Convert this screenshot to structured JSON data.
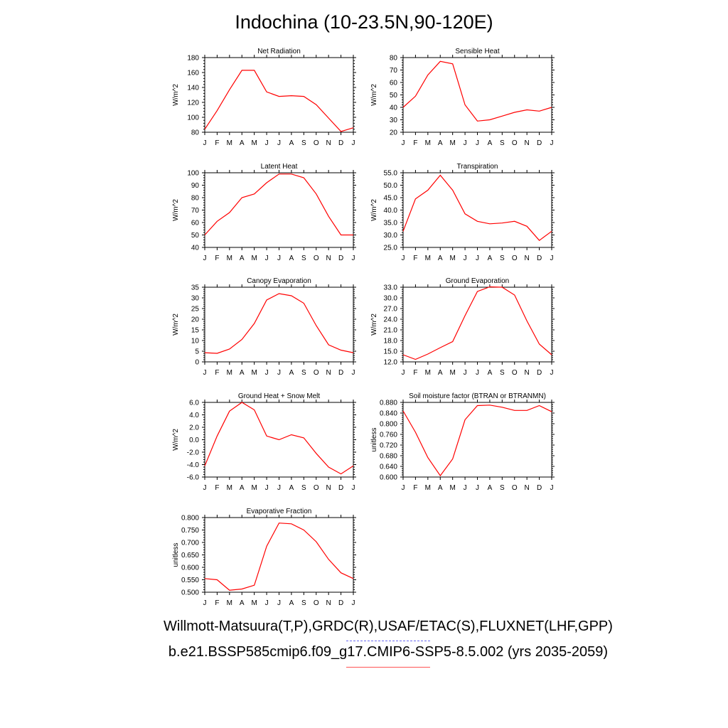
{
  "title": "Indochina (10-23.5N,90-120E)",
  "captions": {
    "obs": "Willmott-Matsuura(T,P),GRDC(R),USAF/ETAC(S),FLUXNET(LHF,GPP)",
    "model": "b.e21.BSSP585cmip6.f09_g17.CMIP6-SSP5-8.5.002 (yrs 2035-2059)"
  },
  "colors": {
    "model_line": "#ff0000",
    "obs_line": "#6a6af0",
    "axis": "#000000"
  },
  "months": [
    "J",
    "F",
    "M",
    "A",
    "M",
    "J",
    "J",
    "A",
    "S",
    "O",
    "N",
    "D",
    "J"
  ],
  "chart_data": [
    {
      "type": "line",
      "title": "Net Radiation",
      "ylabel": "W/m^2",
      "ylim": [
        80,
        180
      ],
      "yticks": [
        "80",
        "100",
        "120",
        "140",
        "160",
        "180"
      ],
      "series": [
        {
          "values": [
            84,
            109,
            137,
            163,
            163,
            134,
            128,
            129,
            128,
            117,
            99,
            81,
            86
          ]
        }
      ]
    },
    {
      "type": "line",
      "title": "Sensible Heat",
      "ylabel": "W/m^2",
      "ylim": [
        20,
        80
      ],
      "yticks": [
        "20",
        "30",
        "40",
        "50",
        "60",
        "70",
        "80"
      ],
      "series": [
        {
          "values": [
            40,
            49,
            66,
            77,
            75,
            42,
            29,
            30,
            33,
            36,
            38,
            37,
            40
          ]
        }
      ]
    },
    {
      "type": "line",
      "title": "Latent Heat",
      "ylabel": "W/m^2",
      "ylim": [
        40,
        100
      ],
      "yticks": [
        "40",
        "50",
        "60",
        "70",
        "80",
        "90",
        "100"
      ],
      "series": [
        {
          "values": [
            50,
            61,
            68,
            80,
            83,
            92,
            99,
            99,
            96,
            83,
            65,
            50,
            50
          ]
        }
      ]
    },
    {
      "type": "line",
      "title": "Transpiration",
      "ylabel": "W/m^2",
      "ylim": [
        25,
        55
      ],
      "yticks": [
        "25.0",
        "30.0",
        "35.0",
        "40.0",
        "45.0",
        "50.0",
        "55.0"
      ],
      "series": [
        {
          "values": [
            31.5,
            44.5,
            48,
            54,
            48,
            38.5,
            35.5,
            34.5,
            34.8,
            35.5,
            33.5,
            27.8,
            31.5
          ]
        }
      ]
    },
    {
      "type": "line",
      "title": "Canopy Evaporation",
      "ylabel": "W/m^2",
      "ylim": [
        0,
        35
      ],
      "yticks": [
        "0",
        "5",
        "10",
        "15",
        "20",
        "25",
        "30",
        "35"
      ],
      "series": [
        {
          "values": [
            4.3,
            4,
            6,
            10.5,
            18,
            29,
            32,
            31,
            27.5,
            17,
            8,
            5.5,
            4.3
          ]
        }
      ]
    },
    {
      "type": "line",
      "title": "Ground Evaporation",
      "ylabel": "W/m^2",
      "ylim": [
        12,
        33
      ],
      "yticks": [
        "12.0",
        "15.0",
        "18.0",
        "21.0",
        "24.0",
        "27.0",
        "30.0",
        "33.0"
      ],
      "series": [
        {
          "values": [
            14,
            12.7,
            14.2,
            16,
            17.7,
            25,
            31.8,
            33.1,
            33,
            30.8,
            23.5,
            17,
            14
          ]
        }
      ]
    },
    {
      "type": "line",
      "title": "Ground Heat + Snow Melt",
      "ylabel": "W/m^2",
      "ylim": [
        -6,
        6
      ],
      "yticks": [
        "-6.0",
        "-4.0",
        "-2.0",
        "0.0",
        "2.0",
        "4.0",
        "6.0"
      ],
      "series": [
        {
          "values": [
            -4.2,
            0.6,
            4.6,
            6,
            4.8,
            0.6,
            0,
            0.8,
            0.3,
            -2.2,
            -4.4,
            -5.5,
            -4.2
          ]
        }
      ]
    },
    {
      "type": "line",
      "title": "Soil moisture factor (BTRAN or BTRANMN)",
      "ylabel": "unitless",
      "ylim": [
        0.6,
        0.88
      ],
      "yticks": [
        "0.600",
        "0.640",
        "0.680",
        "0.720",
        "0.760",
        "0.800",
        "0.840",
        "0.880"
      ],
      "series": [
        {
          "values": [
            0.848,
            0.768,
            0.673,
            0.605,
            0.668,
            0.815,
            0.868,
            0.87,
            0.862,
            0.85,
            0.85,
            0.868,
            0.845
          ]
        }
      ]
    },
    {
      "type": "line",
      "title": "Evaporative Fraction",
      "ylabel": "unitless",
      "ylim": [
        0.5,
        0.8
      ],
      "yticks": [
        "0.500",
        "0.550",
        "0.600",
        "0.650",
        "0.700",
        "0.750",
        "0.800"
      ],
      "series": [
        {
          "values": [
            0.555,
            0.55,
            0.508,
            0.513,
            0.528,
            0.685,
            0.778,
            0.775,
            0.75,
            0.703,
            0.632,
            0.578,
            0.555
          ]
        }
      ]
    }
  ]
}
